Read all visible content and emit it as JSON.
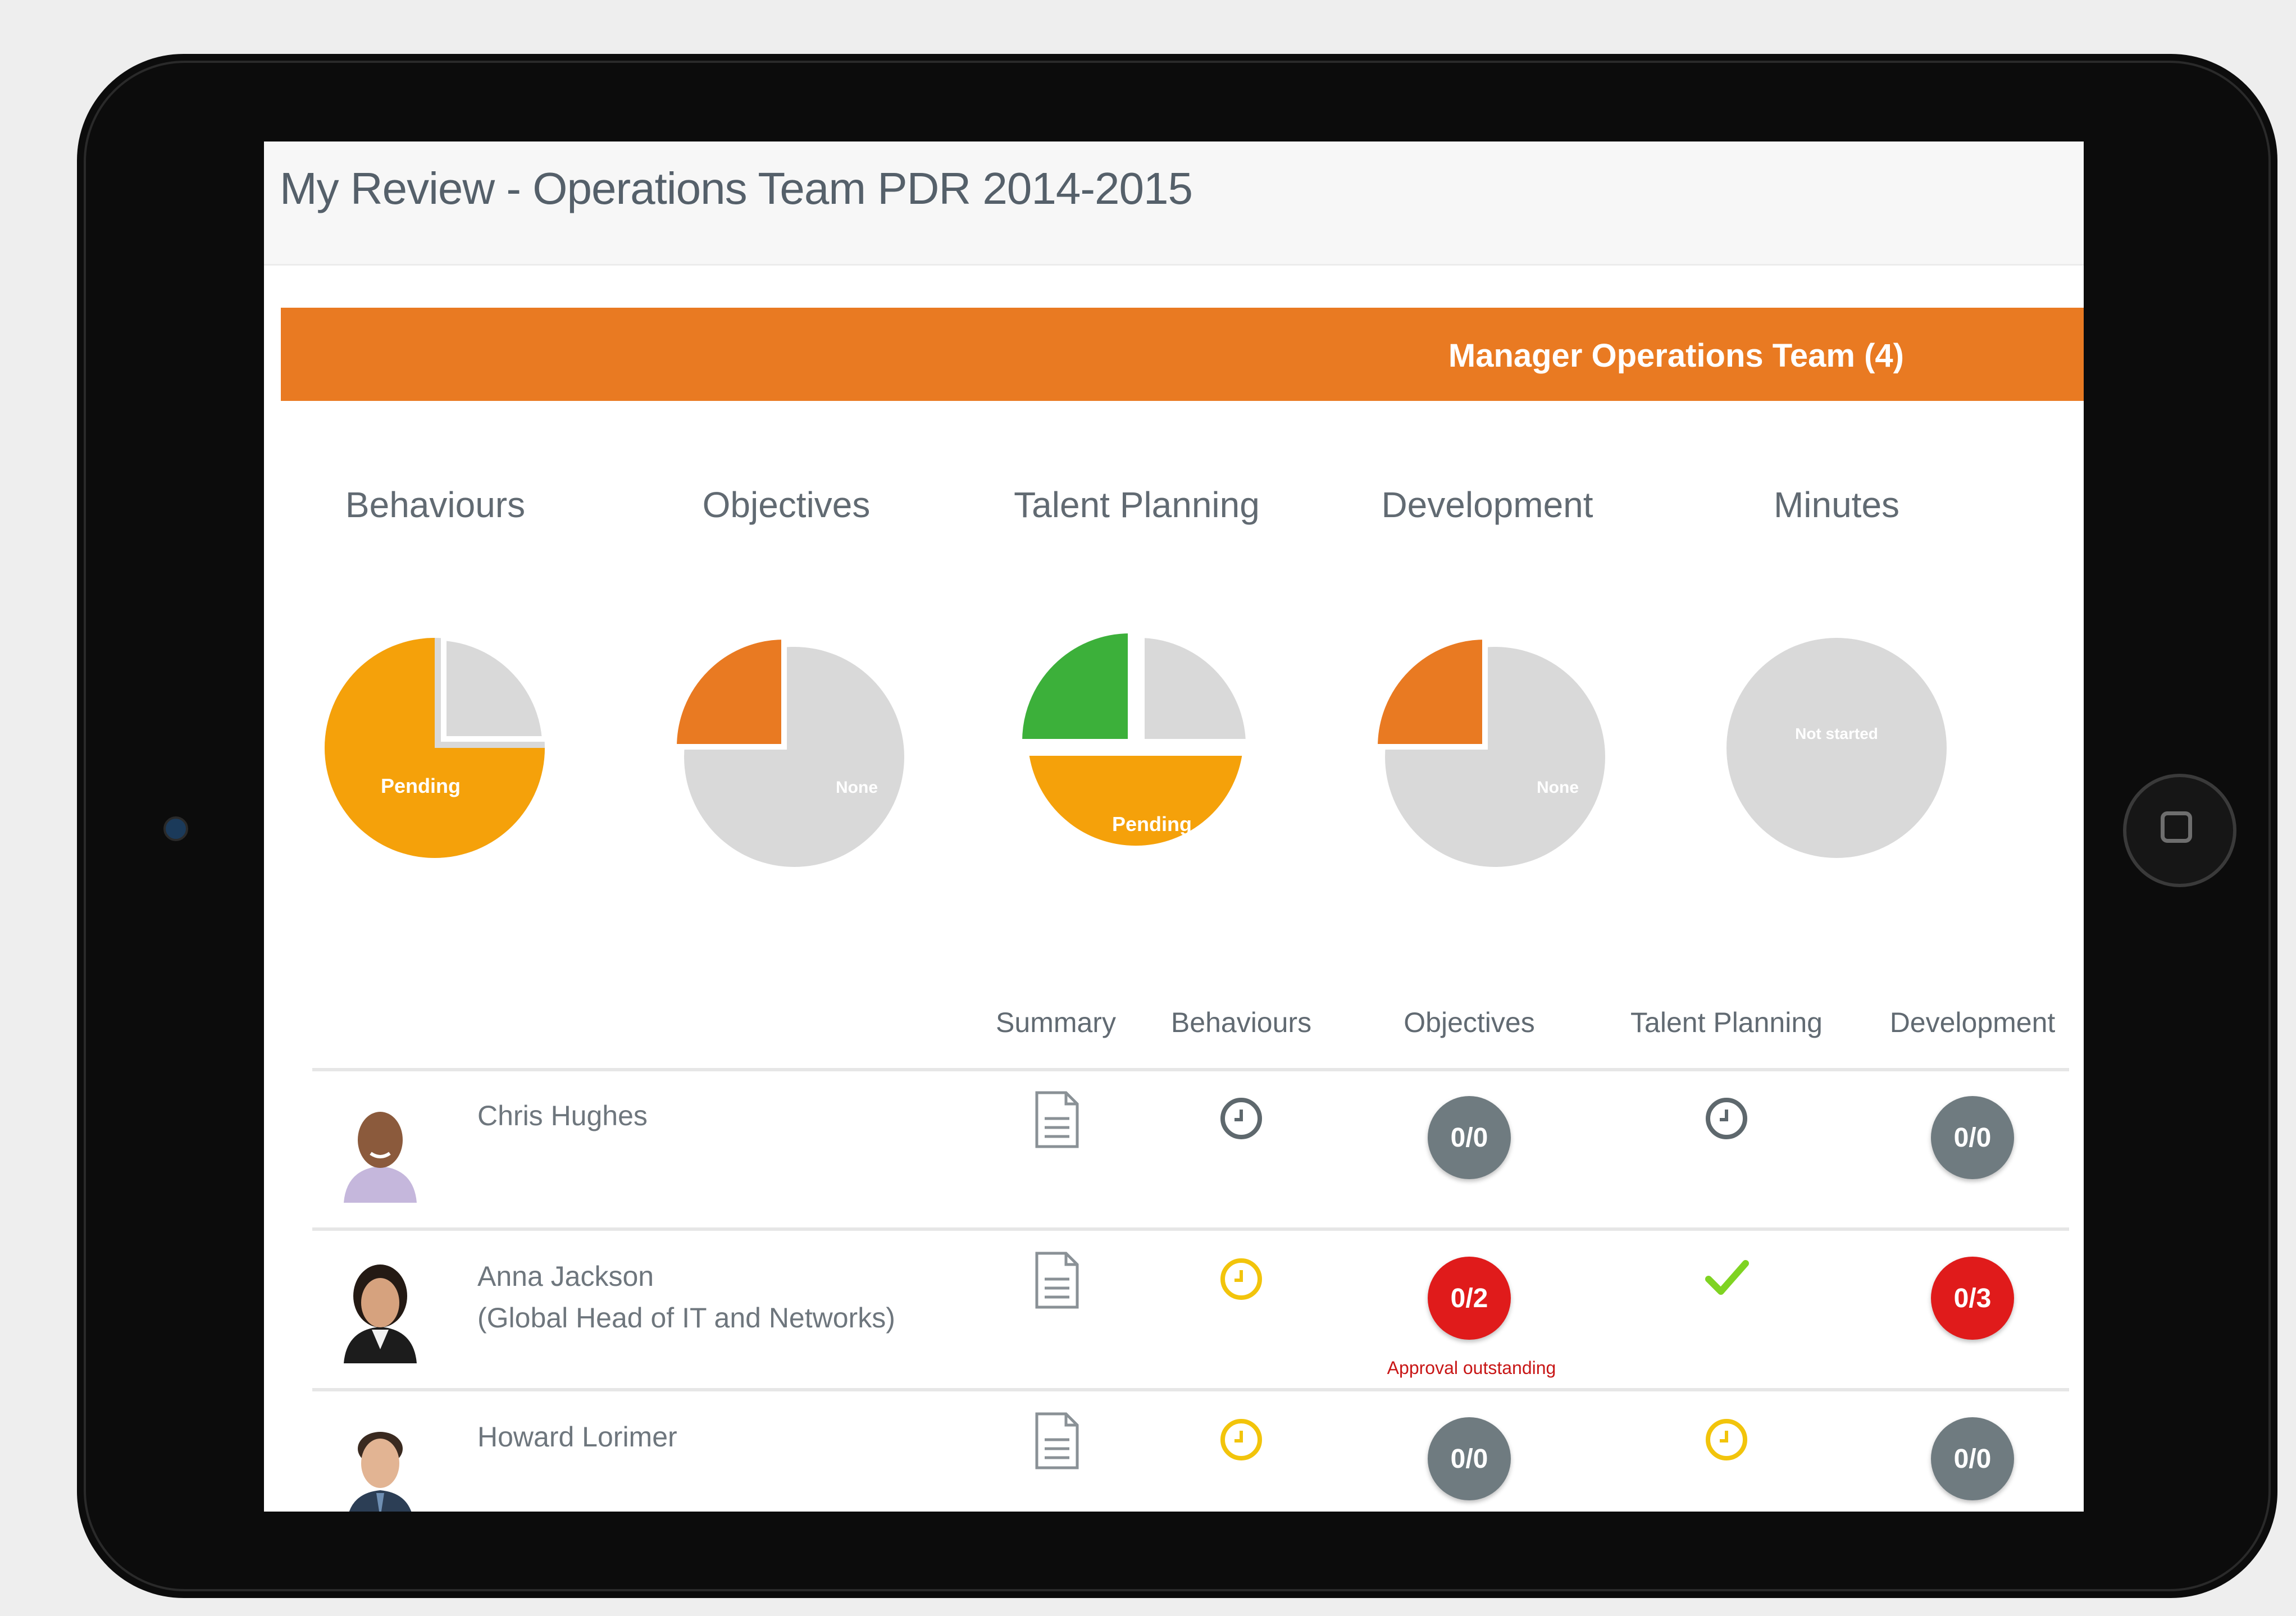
{
  "header": {
    "title": "My Review - Operations Team PDR 2014-2015"
  },
  "team_bar": {
    "label": "Manager Operations Team (4)",
    "color": "#e97a22"
  },
  "categories": [
    {
      "label": "Behaviours",
      "pie_text": "Pending",
      "pie_icon": "pie-chart-icon"
    },
    {
      "label": "Objectives",
      "pie_text": "None",
      "pie_icon": "pie-chart-icon"
    },
    {
      "label": "Talent Planning",
      "pie_text": "Pending",
      "pie_icon": "pie-chart-icon"
    },
    {
      "label": "Development",
      "pie_text": "None",
      "pie_icon": "pie-chart-icon"
    },
    {
      "label": "Minutes",
      "pie_text": "Not started",
      "pie_icon": "pie-chart-icon"
    }
  ],
  "colors": {
    "pending": "#f5a10a",
    "overdue": "#e97a22",
    "complete": "#3cb03a",
    "none": "#d9d9d9",
    "badge_grey": "#6f7b80",
    "badge_red": "#e01b1b"
  },
  "table": {
    "headers": [
      "Summary",
      "Behaviours",
      "Objectives",
      "Talent Planning",
      "Development"
    ],
    "rows": [
      {
        "name": "Chris Hughes",
        "subtitle": "",
        "summary_icon": "document-icon",
        "behaviours_icon": "clock-icon-grey",
        "objectives": "0/0",
        "objectives_status": "grey",
        "objectives_note": "",
        "talent_icon": "clock-icon-grey",
        "development": "0/0",
        "development_status": "grey"
      },
      {
        "name": "Anna Jackson",
        "subtitle": "(Global Head of IT and Networks)",
        "summary_icon": "document-icon",
        "behaviours_icon": "clock-icon-yellow",
        "objectives": "0/2",
        "objectives_status": "red",
        "objectives_note": "Approval outstanding",
        "talent_icon": "checkmark-icon",
        "development": "0/3",
        "development_status": "red"
      },
      {
        "name": "Howard Lorimer",
        "subtitle": "",
        "summary_icon": "document-icon",
        "behaviours_icon": "clock-icon-yellow",
        "objectives": "0/0",
        "objectives_status": "grey",
        "objectives_note": "",
        "talent_icon": "clock-icon-yellow",
        "development": "0/0",
        "development_status": "grey"
      }
    ]
  }
}
